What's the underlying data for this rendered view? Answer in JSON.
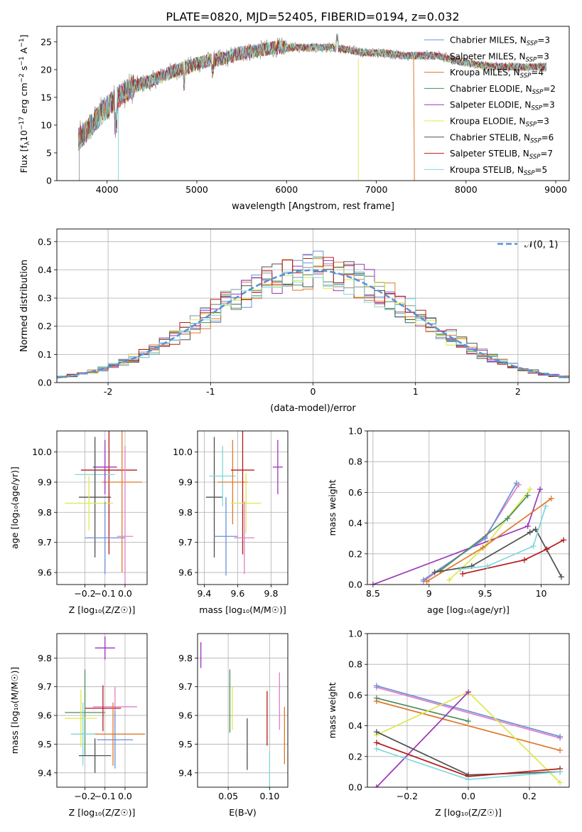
{
  "figure_title": "PLATE=0820, MJD=52405, FIBERID=0194, z=0.032",
  "colors": {
    "Chabrier MILES": "#6b8fd6",
    "Salpeter MILES": "#8c8c8c",
    "Kroupa MILES": "#e0782b",
    "Chabrier ELODIE": "#4f8c5c",
    "Salpeter ELODIE": "#9b35b8",
    "Kroupa ELODIE": "#dde84a",
    "Chabrier STELIB": "#505050",
    "Salpeter STELIB": "#b51a1a",
    "Kroupa STELIB": "#7fd8dc",
    "pink": "#e27fc8"
  },
  "chart_data": [
    {
      "type": "line",
      "panel": "spectrum",
      "xlabel": "wavelength [Angstrom, rest frame]",
      "ylabel": "Flux [f_λ10^-17 erg cm^-2 s^-1 A^-1]",
      "xlim": [
        3440,
        9150
      ],
      "ylim": [
        0,
        27.8
      ],
      "xticks": [
        4000,
        5000,
        6000,
        7000,
        8000,
        9000
      ],
      "yticks": [
        0,
        5,
        10,
        15,
        20,
        25
      ],
      "legend_position": "top-right",
      "legend": [
        {
          "base": "Chabrier MILES, N",
          "sub": "SSP",
          "tail": "=3"
        },
        {
          "base": "Salpeter MILES, N",
          "sub": "SSP",
          "tail": "=3"
        },
        {
          "base": "Kroupa MILES, N",
          "sub": "SSP",
          "tail": "=4"
        },
        {
          "base": "Chabrier ELODIE, N",
          "sub": "SSP",
          "tail": "=2"
        },
        {
          "base": "Salpeter ELODIE, N",
          "sub": "SSP",
          "tail": "=3"
        },
        {
          "base": "Kroupa ELODIE, N",
          "sub": "SSP",
          "tail": "=3"
        },
        {
          "base": "Chabrier STELIB, N",
          "sub": "SSP",
          "tail": "=6"
        },
        {
          "base": "Salpeter STELIB, N",
          "sub": "SSP",
          "tail": "=7"
        },
        {
          "base": "Kroupa STELIB, N",
          "sub": "SSP",
          "tail": "=5"
        }
      ],
      "continuum_x": [
        3680,
        3750,
        3850,
        3950,
        4050,
        4150,
        4300,
        4500,
        4700,
        4900,
        5100,
        5300,
        5500,
        5700,
        5900,
        6100,
        6300,
        6500,
        6700,
        6900,
        7100,
        7300,
        7500,
        7700,
        7900,
        8100,
        8300,
        8500,
        8700,
        8900
      ],
      "continuum_y": [
        7.5,
        8.5,
        10.5,
        12.5,
        14,
        15.5,
        17,
        18,
        19.5,
        20.5,
        21.5,
        22,
        23,
        23.5,
        24,
        24,
        24,
        24,
        23.5,
        23,
        23,
        22.5,
        22.5,
        22.5,
        21.5,
        21,
        20.5,
        20.5,
        20.5,
        20.5
      ]
    },
    {
      "type": "bar",
      "panel": "residual-histogram",
      "xlabel": "(data-model)/error",
      "ylabel": "Normed distribution",
      "xlim": [
        -2.5,
        2.5
      ],
      "ylim": [
        0,
        0.545
      ],
      "xticks": [
        -2,
        -1,
        0,
        1,
        2
      ],
      "yticks": [
        0.0,
        0.1,
        0.2,
        0.3,
        0.4,
        0.5
      ],
      "legend_label": "𝒩(0, 1)",
      "legend_position": "top-right",
      "bin_width": 0.1,
      "reference_curve": "normal(0,1) pdf",
      "grid": true
    },
    {
      "type": "scatter",
      "panel": "age-vs-Z",
      "xlabel": "Z [log10(Z/Z⊙)]",
      "ylabel": "age [log10(age/yr)]",
      "xlim": [
        -0.34,
        0.11
      ],
      "ylim": [
        9.56,
        10.07
      ],
      "xticks": [
        -0.2,
        -0.1,
        0.0
      ],
      "xtick_labels": [
        "−0.2",
        "−0.1",
        "0.0"
      ],
      "yticks": [
        9.6,
        9.7,
        9.8,
        9.9,
        10.0
      ],
      "points": [
        {
          "x": -0.08,
          "y": 9.94,
          "xerr": 0.14,
          "yerr": 0.28,
          "c": "#b51a1a"
        },
        {
          "x": -0.15,
          "y": 9.925,
          "xerr": 0.1,
          "yerr": 0.08,
          "c": "#7fd8dc"
        },
        {
          "x": -0.015,
          "y": 9.9,
          "xerr": 0.1,
          "yerr": 0.3,
          "c": "#e0782b"
        },
        {
          "x": -0.1,
          "y": 9.95,
          "xerr": 0.06,
          "yerr": 0.09,
          "c": "#9b35b8"
        },
        {
          "x": -0.15,
          "y": 9.85,
          "xerr": 0.08,
          "yerr": 0.2,
          "c": "#505050"
        },
        {
          "x": -0.18,
          "y": 9.83,
          "xerr": 0.12,
          "yerr": 0.09,
          "c": "#dde84a"
        },
        {
          "x": -0.1,
          "y": 9.715,
          "xerr": 0.1,
          "yerr": 0.12,
          "c": "#6b8fd6"
        },
        {
          "x": 0.0,
          "y": 9.72,
          "xerr": 0.04,
          "yerr": 0.3,
          "c": "#e27fc8"
        }
      ]
    },
    {
      "type": "scatter",
      "panel": "age-vs-mass",
      "xlabel": "mass [log10(M/M⊙)]",
      "xlim": [
        9.36,
        9.9
      ],
      "ylim": [
        9.56,
        10.07
      ],
      "xticks": [
        9.4,
        9.6,
        9.8
      ],
      "yticks": [
        9.6,
        9.7,
        9.8,
        9.9,
        10.0
      ],
      "points": [
        {
          "x": 9.46,
          "y": 9.85,
          "xerr": 0.05,
          "yerr": 0.2,
          "c": "#505050"
        },
        {
          "x": 9.51,
          "y": 9.92,
          "xerr": 0.08,
          "yerr": 0.1,
          "c": "#7fd8dc"
        },
        {
          "x": 9.53,
          "y": 9.72,
          "xerr": 0.07,
          "yerr": 0.13,
          "c": "#6b8fd6"
        },
        {
          "x": 9.57,
          "y": 9.9,
          "xerr": 0.09,
          "yerr": 0.14,
          "c": "#e0782b"
        },
        {
          "x": 9.63,
          "y": 9.94,
          "xerr": 0.07,
          "yerr": 0.28,
          "c": "#b51a1a"
        },
        {
          "x": 9.65,
          "y": 9.83,
          "xerr": 0.09,
          "yerr": 0.1,
          "c": "#dde84a"
        },
        {
          "x": 9.64,
          "y": 9.715,
          "xerr": 0.06,
          "yerr": 0.12,
          "c": "#e27fc8"
        },
        {
          "x": 9.84,
          "y": 9.95,
          "xerr": 0.03,
          "yerr": 0.09,
          "c": "#9b35b8"
        }
      ]
    },
    {
      "type": "line",
      "panel": "massweight-vs-age",
      "xlabel": "age [log10(age/yr)]",
      "ylabel": "mass weight",
      "xlim": [
        8.45,
        10.25
      ],
      "ylim": [
        0,
        1.0
      ],
      "xticks": [
        8.5,
        9.0,
        9.5,
        10.0
      ],
      "yticks": [
        0.0,
        0.2,
        0.4,
        0.6,
        0.8,
        1.0
      ],
      "grid": true,
      "series": [
        {
          "c": "#9b35b8",
          "x": [
            8.5,
            9.88,
            9.99
          ],
          "y": [
            0.0,
            0.38,
            0.62
          ]
        },
        {
          "c": "#e27fc8",
          "x": [
            8.95,
            9.5,
            9.8
          ],
          "y": [
            0.02,
            0.31,
            0.65
          ]
        },
        {
          "c": "#6b8fd6",
          "x": [
            8.95,
            9.5,
            9.78
          ],
          "y": [
            0.03,
            0.3,
            0.66
          ]
        },
        {
          "c": "#dde84a",
          "x": [
            9.18,
            9.5,
            9.9
          ],
          "y": [
            0.03,
            0.25,
            0.62
          ]
        },
        {
          "c": "#e0782b",
          "x": [
            8.98,
            9.48,
            10.09
          ],
          "y": [
            0.02,
            0.24,
            0.56
          ]
        },
        {
          "c": "#4f8c5c",
          "x": [
            9.1,
            9.7,
            9.88
          ],
          "y": [
            0.09,
            0.43,
            0.58
          ]
        },
        {
          "c": "#505050",
          "x": [
            9.05,
            9.38,
            9.9,
            9.95,
            10.18
          ],
          "y": [
            0.08,
            0.12,
            0.34,
            0.36,
            0.05
          ]
        },
        {
          "c": "#b51a1a",
          "x": [
            9.3,
            9.85,
            10.05,
            10.2
          ],
          "y": [
            0.07,
            0.16,
            0.23,
            0.29
          ]
        },
        {
          "c": "#7fd8dc",
          "x": [
            9.28,
            9.52,
            9.93,
            10.04
          ],
          "y": [
            0.1,
            0.12,
            0.25,
            0.51
          ]
        }
      ]
    },
    {
      "type": "scatter",
      "panel": "mass-vs-Z",
      "xlabel": "Z [log10(Z/Z⊙)]",
      "ylabel": "mass [log10(M/M⊙)]",
      "xlim": [
        -0.34,
        0.11
      ],
      "ylim": [
        9.35,
        9.885
      ],
      "xticks": [
        -0.2,
        -0.1,
        0.0
      ],
      "xtick_labels": [
        "−0.2",
        "−0.1",
        "0.0"
      ],
      "yticks": [
        9.4,
        9.5,
        9.6,
        9.7,
        9.8
      ],
      "points": [
        {
          "x": -0.1,
          "y": 9.835,
          "xerr": 0.05,
          "yerr": 0.04,
          "c": "#9b35b8"
        },
        {
          "x": -0.05,
          "y": 9.63,
          "xerr": 0.11,
          "yerr": 0.07,
          "c": "#e27fc8"
        },
        {
          "x": -0.11,
          "y": 9.625,
          "xerr": 0.09,
          "yerr": 0.08,
          "c": "#b51a1a"
        },
        {
          "x": -0.2,
          "y": 9.61,
          "xerr": 0.1,
          "yerr": 0.15,
          "c": "#4f8c5c"
        },
        {
          "x": -0.22,
          "y": 9.59,
          "xerr": 0.08,
          "yerr": 0.1,
          "c": "#dde84a"
        },
        {
          "x": -0.06,
          "y": 9.535,
          "xerr": 0.16,
          "yerr": 0.11,
          "c": "#e0782b"
        },
        {
          "x": -0.21,
          "y": 9.535,
          "xerr": 0.06,
          "yerr": 0.11,
          "c": "#7fd8dc"
        },
        {
          "x": -0.05,
          "y": 9.515,
          "xerr": 0.09,
          "yerr": 0.1,
          "c": "#6b8fd6"
        },
        {
          "x": -0.15,
          "y": 9.46,
          "xerr": 0.08,
          "yerr": 0.06,
          "c": "#505050"
        }
      ]
    },
    {
      "type": "scatter",
      "panel": "mass-vs-EBV",
      "xlabel": "E(B-V)",
      "xlim": [
        0.013,
        0.122
      ],
      "ylim": [
        9.35,
        9.885
      ],
      "xticks": [
        0.05,
        0.1
      ],
      "xtick_labels": [
        "0.05",
        "0.10"
      ],
      "yticks": [
        9.4,
        9.5,
        9.6,
        9.7,
        9.8
      ],
      "points": [
        {
          "x": 0.017,
          "y": 9.81,
          "yerr": 0.045,
          "c": "#9b35b8"
        },
        {
          "x": 0.052,
          "y": 9.65,
          "yerr": 0.11,
          "c": "#4f8c5c"
        },
        {
          "x": 0.055,
          "y": 9.625,
          "yerr": 0.075,
          "c": "#dde84a"
        },
        {
          "x": 0.073,
          "y": 9.5,
          "yerr": 0.09,
          "c": "#505050"
        },
        {
          "x": 0.097,
          "y": 9.59,
          "yerr": 0.095,
          "c": "#b51a1a"
        },
        {
          "x": 0.1,
          "y": 9.41,
          "yerr": 0.06,
          "c": "#7fd8dc"
        },
        {
          "x": 0.112,
          "y": 9.65,
          "yerr": 0.1,
          "c": "#e27fc8"
        },
        {
          "x": 0.118,
          "y": 9.53,
          "yerr": 0.1,
          "c": "#e0782b"
        }
      ]
    },
    {
      "type": "line",
      "panel": "massweight-vs-Z",
      "xlabel": "Z [log10(Z/Z⊙)]",
      "ylabel": "mass weight",
      "xlim": [
        -0.33,
        0.33
      ],
      "ylim": [
        0,
        1.0
      ],
      "xticks": [
        -0.2,
        0.0,
        0.2
      ],
      "xtick_labels": [
        "−0.2",
        "0.0",
        "0.2"
      ],
      "yticks": [
        0.0,
        0.2,
        0.4,
        0.6,
        0.8,
        1.0
      ],
      "grid": true,
      "series": [
        {
          "c": "#e27fc8",
          "x": [
            -0.3,
            0.3
          ],
          "y": [
            0.65,
            0.32
          ]
        },
        {
          "c": "#6b8fd6",
          "x": [
            -0.3,
            0.3
          ],
          "y": [
            0.66,
            0.33
          ]
        },
        {
          "c": "#e0782b",
          "x": [
            -0.3,
            0.3
          ],
          "y": [
            0.56,
            0.24
          ]
        },
        {
          "c": "#4f8c5c",
          "x": [
            -0.3,
            0.0
          ],
          "y": [
            0.58,
            0.43
          ]
        },
        {
          "c": "#dde84a",
          "x": [
            -0.3,
            0.0,
            0.3
          ],
          "y": [
            0.34,
            0.62,
            0.03
          ]
        },
        {
          "c": "#9b35b8",
          "x": [
            -0.3,
            0.0
          ],
          "y": [
            0.0,
            0.62
          ]
        },
        {
          "c": "#505050",
          "x": [
            -0.3,
            0.0,
            0.3
          ],
          "y": [
            0.36,
            0.08,
            0.1
          ]
        },
        {
          "c": "#b51a1a",
          "x": [
            -0.3,
            0.0,
            0.3
          ],
          "y": [
            0.29,
            0.07,
            0.12
          ]
        },
        {
          "c": "#7fd8dc",
          "x": [
            -0.3,
            0.0,
            0.3
          ],
          "y": [
            0.25,
            0.05,
            0.1
          ]
        }
      ]
    }
  ]
}
